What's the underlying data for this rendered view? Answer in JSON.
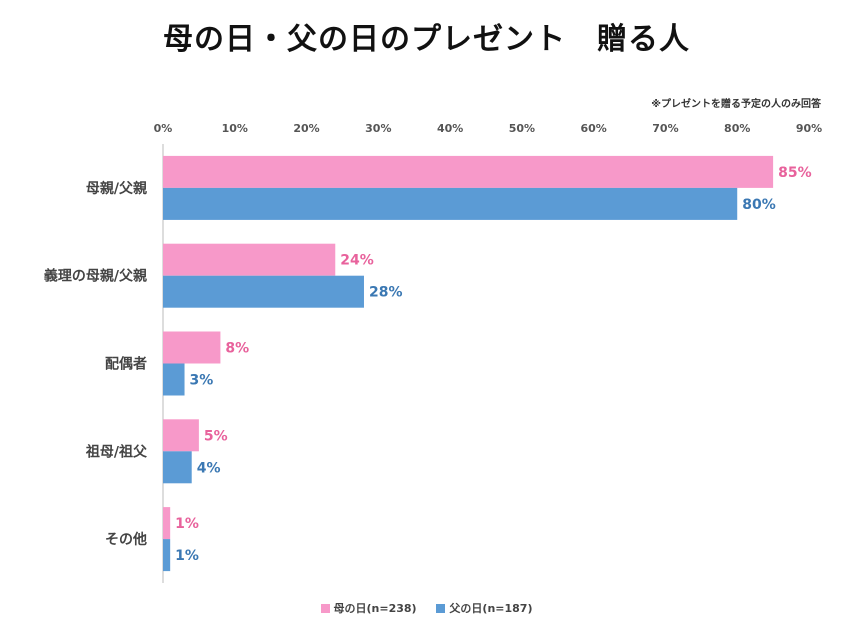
{
  "chart_data": {
    "type": "bar",
    "orientation": "horizontal",
    "title": "母の日・父の日のプレゼント　贈る人",
    "note": "※プレゼントを贈る予定の人のみ回答",
    "categories": [
      "母親/父親",
      "義理の母親/父親",
      "配偶者",
      "祖母/祖父",
      "その他"
    ],
    "series": [
      {
        "name": "母の日(n=238)",
        "color": "#f799c9",
        "label_color": "#e8629c",
        "values": [
          85,
          24,
          8,
          5,
          1
        ]
      },
      {
        "name": "父の日(n=187)",
        "color": "#5b9bd5",
        "label_color": "#3b78b3",
        "values": [
          80,
          28,
          3,
          4,
          1
        ]
      }
    ],
    "xlim": [
      0,
      90
    ],
    "ticks": [
      "0%",
      "10%",
      "20%",
      "30%",
      "40%",
      "50%",
      "60%",
      "70%",
      "80%",
      "90%"
    ],
    "value_suffix": "%",
    "legend_position": "bottom",
    "grid": false
  }
}
